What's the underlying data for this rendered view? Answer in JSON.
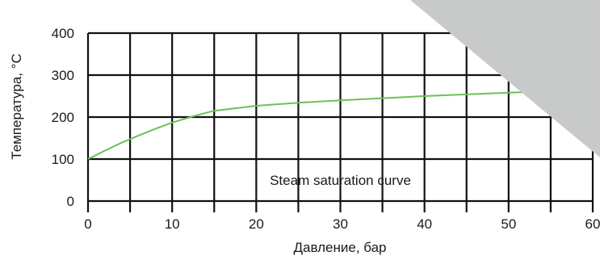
{
  "chart_data": {
    "type": "line",
    "title": "",
    "xlabel": "Давление, бар",
    "ylabel": "Температура, °C",
    "xlim": [
      0,
      60
    ],
    "ylim": [
      0,
      400
    ],
    "x_ticks": [
      0,
      5,
      10,
      15,
      20,
      25,
      30,
      35,
      40,
      45,
      50,
      55,
      60
    ],
    "x_tick_labels": [
      "0",
      "10",
      "20",
      "30",
      "40",
      "50",
      "60"
    ],
    "x_tick_label_values": [
      0,
      10,
      20,
      30,
      40,
      50,
      60
    ],
    "y_ticks": [
      0,
      100,
      200,
      300,
      400
    ],
    "y_tick_labels": [
      "0",
      "100",
      "200",
      "300",
      "400"
    ],
    "grid": true,
    "series": [
      {
        "color": "#6dbf5a",
        "x": [
          0,
          2,
          4,
          6,
          8,
          10,
          12,
          14,
          15,
          20,
          25,
          30,
          35,
          40,
          45,
          50,
          55,
          60
        ],
        "y": [
          100,
          120,
          139,
          156,
          172,
          187,
          199,
          210,
          215,
          227,
          234,
          240,
          245,
          250,
          254,
          258,
          262,
          266
        ]
      }
    ],
    "annotations": [
      {
        "text": "Steam saturation curve",
        "x": 30,
        "y": 50
      }
    ],
    "overlay_color": "#c8cac9"
  }
}
